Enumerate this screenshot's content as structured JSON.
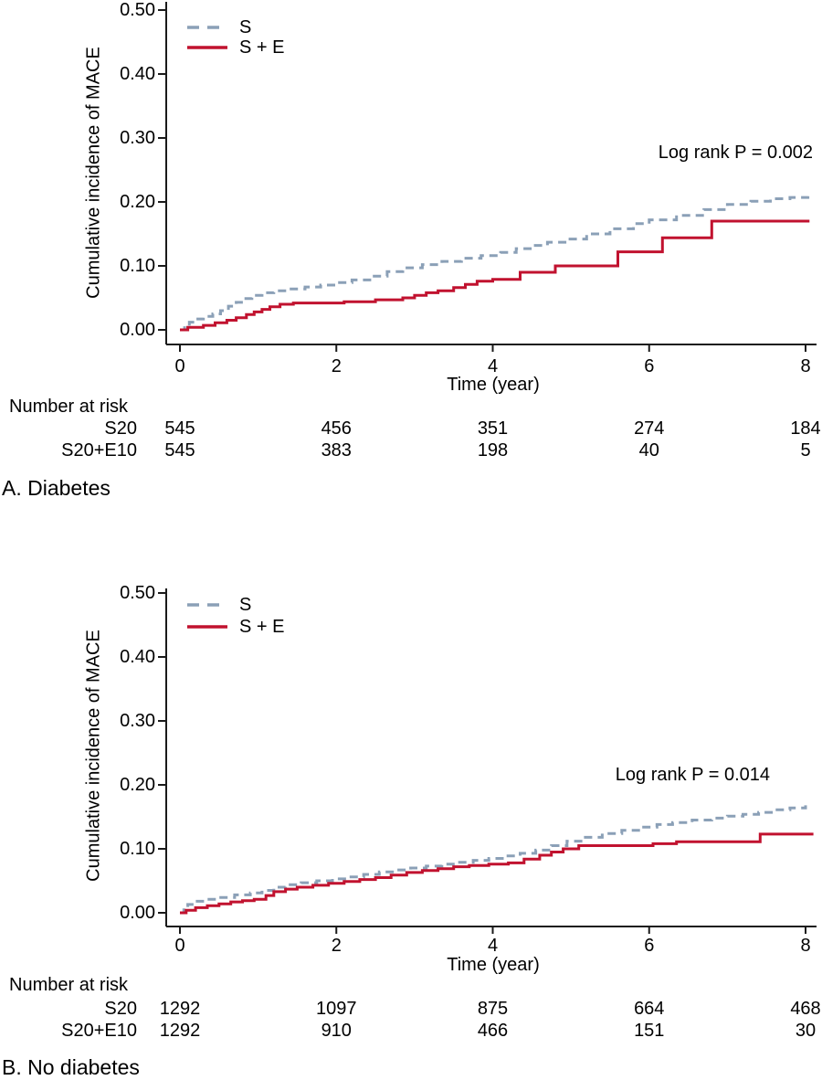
{
  "colors": {
    "background": "#ffffff",
    "axis": "#1a1a1a",
    "text": "#000000",
    "s_line": "#8BA0B7",
    "se_line": "#C1122F"
  },
  "chart_data": [
    {
      "type": "line",
      "subtype": "step-cumulative-incidence",
      "panel_caption": "A. Diabetes",
      "ylabel": "Cumulative incidence of MACE",
      "xlabel": "Time (year)",
      "annotation": "Log rank P = 0.002",
      "legend": [
        "S",
        "S + E"
      ],
      "legend_position": "inside-top-left",
      "grid": false,
      "xlim": [
        0,
        8
      ],
      "ylim": [
        0,
        0.5
      ],
      "xticks": [
        0,
        2,
        4,
        6,
        8
      ],
      "yticks": [
        "0.00",
        "0.10",
        "0.20",
        "0.30",
        "0.40",
        "0.50"
      ],
      "series": [
        {
          "name": "S",
          "style": "dashed",
          "color": "#8BA0B7",
          "step_points": [
            [
              0,
              0
            ],
            [
              0.06,
              0.006
            ],
            [
              0.12,
              0.012
            ],
            [
              0.2,
              0.017
            ],
            [
              0.3,
              0.021
            ],
            [
              0.42,
              0.025
            ],
            [
              0.52,
              0.03
            ],
            [
              0.62,
              0.037
            ],
            [
              0.72,
              0.043
            ],
            [
              0.82,
              0.049
            ],
            [
              0.92,
              0.054
            ],
            [
              1.05,
              0.058
            ],
            [
              1.2,
              0.061
            ],
            [
              1.4,
              0.064
            ],
            [
              1.6,
              0.067
            ],
            [
              1.8,
              0.07
            ],
            [
              2.0,
              0.074
            ],
            [
              2.2,
              0.078
            ],
            [
              2.45,
              0.084
            ],
            [
              2.65,
              0.091
            ],
            [
              2.85,
              0.097
            ],
            [
              3.1,
              0.102
            ],
            [
              3.35,
              0.107
            ],
            [
              3.6,
              0.112
            ],
            [
              3.85,
              0.116
            ],
            [
              4.1,
              0.121
            ],
            [
              4.3,
              0.127
            ],
            [
              4.5,
              0.132
            ],
            [
              4.7,
              0.137
            ],
            [
              4.95,
              0.142
            ],
            [
              5.2,
              0.15
            ],
            [
              5.5,
              0.158
            ],
            [
              5.8,
              0.166
            ],
            [
              6.0,
              0.172
            ],
            [
              6.35,
              0.179
            ],
            [
              6.7,
              0.188
            ],
            [
              7.0,
              0.196
            ],
            [
              7.3,
              0.201
            ],
            [
              7.55,
              0.205
            ],
            [
              7.8,
              0.207
            ],
            [
              8.03,
              0.209
            ]
          ]
        },
        {
          "name": "S + E",
          "style": "solid",
          "color": "#C1122F",
          "step_points": [
            [
              0,
              0
            ],
            [
              0.1,
              0.004
            ],
            [
              0.3,
              0.007
            ],
            [
              0.45,
              0.011
            ],
            [
              0.6,
              0.015
            ],
            [
              0.72,
              0.019
            ],
            [
              0.85,
              0.024
            ],
            [
              0.95,
              0.028
            ],
            [
              1.05,
              0.032
            ],
            [
              1.15,
              0.036
            ],
            [
              1.28,
              0.04
            ],
            [
              1.45,
              0.042
            ],
            [
              2.1,
              0.044
            ],
            [
              2.5,
              0.047
            ],
            [
              2.85,
              0.05
            ],
            [
              3.0,
              0.054
            ],
            [
              3.15,
              0.058
            ],
            [
              3.3,
              0.061
            ],
            [
              3.5,
              0.066
            ],
            [
              3.65,
              0.071
            ],
            [
              3.8,
              0.076
            ],
            [
              4.0,
              0.079
            ],
            [
              4.35,
              0.09
            ],
            [
              4.8,
              0.1
            ],
            [
              5.6,
              0.122
            ],
            [
              6.17,
              0.144
            ],
            [
              6.8,
              0.17
            ],
            [
              8.05,
              0.17
            ]
          ]
        }
      ],
      "risk_table": {
        "header": "Number at risk",
        "time_points": [
          0,
          2,
          4,
          6,
          8
        ],
        "rows": [
          {
            "label": "S20",
            "values": [
              545,
              456,
              351,
              274,
              184
            ]
          },
          {
            "label": "S20+E10",
            "values": [
              545,
              383,
              198,
              40,
              5
            ]
          }
        ]
      }
    },
    {
      "type": "line",
      "subtype": "step-cumulative-incidence",
      "panel_caption": "B. No diabetes",
      "ylabel": "Cumulative incidence of MACE",
      "xlabel": "Time (year)",
      "annotation": "Log rank P = 0.014",
      "legend": [
        "S",
        "S + E"
      ],
      "legend_position": "inside-top-left",
      "grid": false,
      "xlim": [
        0,
        8
      ],
      "ylim": [
        0,
        0.5
      ],
      "xticks": [
        0,
        2,
        4,
        6,
        8
      ],
      "yticks": [
        "0.00",
        "0.10",
        "0.20",
        "0.30",
        "0.40",
        "0.50"
      ],
      "series": [
        {
          "name": "S",
          "style": "dashed",
          "color": "#8BA0B7",
          "step_points": [
            [
              0,
              0
            ],
            [
              0.05,
              0.008
            ],
            [
              0.1,
              0.013
            ],
            [
              0.2,
              0.018
            ],
            [
              0.35,
              0.021
            ],
            [
              0.5,
              0.024
            ],
            [
              0.7,
              0.028
            ],
            [
              0.9,
              0.031
            ],
            [
              1.05,
              0.035
            ],
            [
              1.2,
              0.04
            ],
            [
              1.35,
              0.044
            ],
            [
              1.55,
              0.047
            ],
            [
              1.75,
              0.05
            ],
            [
              1.95,
              0.053
            ],
            [
              2.15,
              0.056
            ],
            [
              2.35,
              0.06
            ],
            [
              2.55,
              0.064
            ],
            [
              2.75,
              0.067
            ],
            [
              2.95,
              0.07
            ],
            [
              3.15,
              0.073
            ],
            [
              3.35,
              0.076
            ],
            [
              3.55,
              0.079
            ],
            [
              3.75,
              0.082
            ],
            [
              3.95,
              0.085
            ],
            [
              4.15,
              0.089
            ],
            [
              4.35,
              0.093
            ],
            [
              4.55,
              0.098
            ],
            [
              4.75,
              0.105
            ],
            [
              4.95,
              0.112
            ],
            [
              5.15,
              0.118
            ],
            [
              5.4,
              0.124
            ],
            [
              5.65,
              0.129
            ],
            [
              5.9,
              0.134
            ],
            [
              6.1,
              0.138
            ],
            [
              6.3,
              0.141
            ],
            [
              6.55,
              0.145
            ],
            [
              6.8,
              0.148
            ],
            [
              7.0,
              0.151
            ],
            [
              7.2,
              0.154
            ],
            [
              7.4,
              0.157
            ],
            [
              7.6,
              0.161
            ],
            [
              7.8,
              0.164
            ],
            [
              8.0,
              0.168
            ]
          ]
        },
        {
          "name": "S + E",
          "style": "solid",
          "color": "#C1122F",
          "step_points": [
            [
              0,
              0
            ],
            [
              0.08,
              0.004
            ],
            [
              0.2,
              0.008
            ],
            [
              0.35,
              0.011
            ],
            [
              0.5,
              0.014
            ],
            [
              0.65,
              0.017
            ],
            [
              0.8,
              0.019
            ],
            [
              0.95,
              0.021
            ],
            [
              1.1,
              0.027
            ],
            [
              1.2,
              0.033
            ],
            [
              1.35,
              0.037
            ],
            [
              1.5,
              0.04
            ],
            [
              1.7,
              0.043
            ],
            [
              1.9,
              0.046
            ],
            [
              2.1,
              0.049
            ],
            [
              2.3,
              0.052
            ],
            [
              2.5,
              0.055
            ],
            [
              2.7,
              0.059
            ],
            [
              2.9,
              0.063
            ],
            [
              3.1,
              0.066
            ],
            [
              3.3,
              0.069
            ],
            [
              3.5,
              0.072
            ],
            [
              3.7,
              0.074
            ],
            [
              3.95,
              0.076
            ],
            [
              4.2,
              0.078
            ],
            [
              4.4,
              0.084
            ],
            [
              4.6,
              0.09
            ],
            [
              4.75,
              0.095
            ],
            [
              4.9,
              0.1
            ],
            [
              5.1,
              0.105
            ],
            [
              6.05,
              0.108
            ],
            [
              6.35,
              0.111
            ],
            [
              7.42,
              0.123
            ],
            [
              8.1,
              0.123
            ]
          ]
        }
      ],
      "risk_table": {
        "header": "Number at risk",
        "time_points": [
          0,
          2,
          4,
          6,
          8
        ],
        "rows": [
          {
            "label": "S20",
            "values": [
              1292,
              1097,
              875,
              664,
              468
            ]
          },
          {
            "label": "S20+E10",
            "values": [
              1292,
              910,
              466,
              151,
              30
            ]
          }
        ]
      }
    }
  ]
}
